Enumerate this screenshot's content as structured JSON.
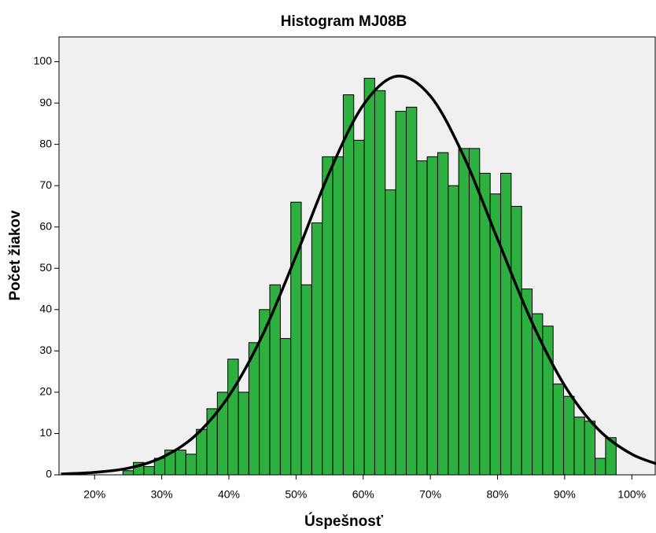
{
  "chart_data": {
    "type": "histogram",
    "title": "Histogram MJ08B",
    "x_label": "Úspešnosť",
    "y_label": "Počet žiakov",
    "bins": [
      24.22,
      25.78,
      27.34,
      28.91,
      30.47,
      32.03,
      33.59,
      35.16,
      36.72,
      38.28,
      39.84,
      41.41,
      42.97,
      44.53,
      46.09,
      47.66,
      49.22,
      50.78,
      52.34,
      53.91,
      55.47,
      57.03,
      58.59,
      60.16,
      61.72,
      63.28,
      64.84,
      66.41,
      67.97,
      69.53,
      71.09,
      72.66,
      74.22,
      75.78,
      77.34,
      78.91,
      80.47,
      82.03,
      83.59,
      85.16,
      86.72,
      88.28,
      89.84,
      91.41,
      92.97,
      94.53,
      96.09,
      97.66
    ],
    "values": [
      1,
      3,
      2,
      4,
      6,
      6,
      5,
      11,
      16,
      20,
      28,
      20,
      32,
      40,
      46,
      33,
      66,
      46,
      61,
      77,
      77,
      92,
      81,
      96,
      93,
      69,
      88,
      89,
      76,
      77,
      78,
      70,
      79,
      79,
      73,
      68,
      73,
      65,
      45,
      39,
      36,
      22,
      19,
      14,
      13,
      4,
      9
    ],
    "color": "#2db040",
    "curve": {
      "color": "#000000",
      "x": [
        15,
        20,
        25,
        30,
        35,
        40,
        45,
        50,
        55,
        60,
        65,
        70,
        75,
        80,
        85,
        90,
        95,
        100,
        105
      ],
      "y": [
        0.2,
        0.6,
        1.6,
        4.2,
        9.5,
        19.1,
        33.8,
        53.0,
        73.3,
        89.5,
        96.5,
        91.7,
        77.0,
        57.1,
        37.4,
        21.6,
        11.0,
        5.0,
        2.0
      ]
    },
    "xlim": [
      14.7,
      103.6
    ],
    "ylim": [
      0,
      106
    ],
    "xticks": [
      {
        "value": 20,
        "label": "20%"
      },
      {
        "value": 30,
        "label": "30%"
      },
      {
        "value": 40,
        "label": "40%"
      },
      {
        "value": 50,
        "label": "50%"
      },
      {
        "value": 60,
        "label": "60%"
      },
      {
        "value": 70,
        "label": "70%"
      },
      {
        "value": 80,
        "label": "80%"
      },
      {
        "value": 90,
        "label": "90%"
      },
      {
        "value": 100,
        "label": "100%"
      }
    ],
    "yticks": [
      0,
      10,
      20,
      30,
      40,
      50,
      60,
      70,
      80,
      90,
      100
    ]
  }
}
